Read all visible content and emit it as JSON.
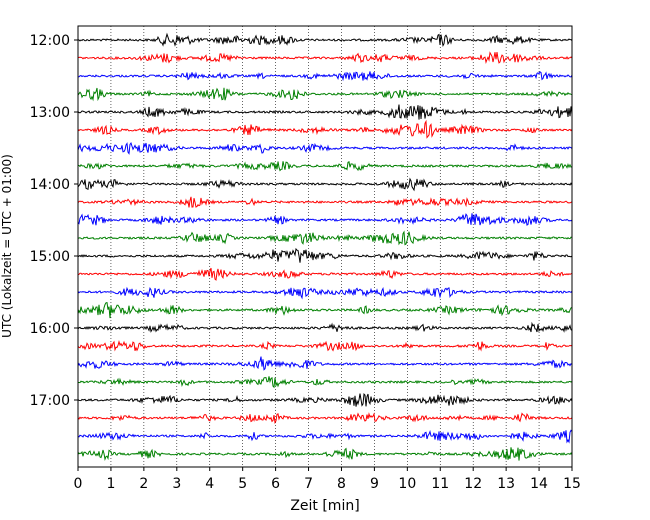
{
  "chart_data": {
    "type": "line",
    "title": "",
    "xlabel": "Zeit  [min]",
    "ylabel": "UTC (Lokalzeit = UTC + 01:00)",
    "xlim": [
      0,
      15
    ],
    "x_ticks": [
      "0",
      "1",
      "2",
      "3",
      "4",
      "5",
      "6",
      "7",
      "8",
      "9",
      "10",
      "11",
      "12",
      "13",
      "14",
      "15"
    ],
    "y_ticks": [
      "12:00",
      "13:00",
      "14:00",
      "15:00",
      "16:00",
      "17:00"
    ],
    "grid": "vertical-dotted",
    "trace_interval_minutes": 15,
    "trace_start": "12:00",
    "trace_count": 24,
    "trace_colors": [
      "#000000",
      "#ff0000",
      "#0000ff",
      "#008000"
    ],
    "traces": [
      {
        "start": "12:00",
        "color": "#000000"
      },
      {
        "start": "12:15",
        "color": "#ff0000"
      },
      {
        "start": "12:30",
        "color": "#0000ff"
      },
      {
        "start": "12:45",
        "color": "#008000"
      },
      {
        "start": "13:00",
        "color": "#000000"
      },
      {
        "start": "13:15",
        "color": "#ff0000"
      },
      {
        "start": "13:30",
        "color": "#0000ff"
      },
      {
        "start": "13:45",
        "color": "#008000"
      },
      {
        "start": "14:00",
        "color": "#000000"
      },
      {
        "start": "14:15",
        "color": "#ff0000"
      },
      {
        "start": "14:30",
        "color": "#0000ff"
      },
      {
        "start": "14:45",
        "color": "#008000"
      },
      {
        "start": "15:00",
        "color": "#000000"
      },
      {
        "start": "15:15",
        "color": "#ff0000"
      },
      {
        "start": "15:30",
        "color": "#0000ff"
      },
      {
        "start": "15:45",
        "color": "#008000"
      },
      {
        "start": "16:00",
        "color": "#000000"
      },
      {
        "start": "16:15",
        "color": "#ff0000"
      },
      {
        "start": "16:30",
        "color": "#0000ff"
      },
      {
        "start": "16:45",
        "color": "#008000"
      },
      {
        "start": "17:00",
        "color": "#000000"
      },
      {
        "start": "17:15",
        "color": "#ff0000"
      },
      {
        "start": "17:30",
        "color": "#0000ff"
      },
      {
        "start": "17:45",
        "color": "#008000"
      }
    ]
  }
}
